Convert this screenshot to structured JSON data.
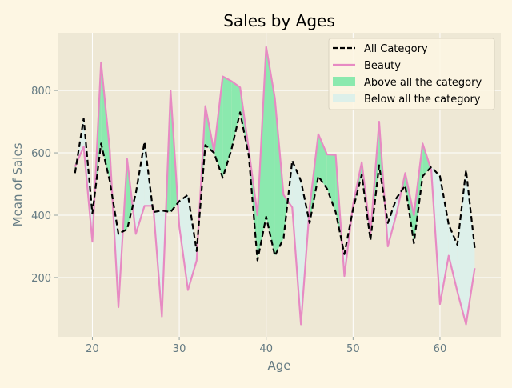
{
  "chart_data": {
    "type": "line",
    "title": "Sales by Ages",
    "xlabel": "Age",
    "ylabel": "Mean of Sales",
    "xlim": [
      16,
      67
    ],
    "ylim": [
      10,
      985
    ],
    "xticks": [
      20,
      30,
      40,
      50,
      60
    ],
    "yticks": [
      200,
      400,
      600,
      800
    ],
    "grid": true,
    "legend_position": "top-right",
    "x": [
      18,
      19,
      20,
      21,
      22,
      23,
      24,
      25,
      26,
      27,
      28,
      29,
      30,
      31,
      32,
      33,
      34,
      35,
      36,
      37,
      38,
      39,
      40,
      41,
      42,
      43,
      44,
      45,
      46,
      47,
      48,
      49,
      50,
      51,
      52,
      53,
      54,
      55,
      56,
      57,
      58,
      59,
      60,
      61,
      62,
      63,
      64
    ],
    "series": [
      {
        "name": "All Category",
        "color": "#000000",
        "style": "dashed",
        "values": [
          535,
          710,
          405,
          630,
          510,
          340,
          355,
          470,
          635,
          410,
          415,
          410,
          445,
          465,
          285,
          625,
          600,
          520,
          610,
          730,
          590,
          255,
          395,
          270,
          325,
          575,
          510,
          375,
          525,
          485,
          410,
          275,
          420,
          530,
          320,
          560,
          375,
          455,
          495,
          310,
          525,
          555,
          525,
          370,
          305,
          545,
          295
        ]
      },
      {
        "name": "Beauty",
        "color": "#e78ac3",
        "style": "solid",
        "values": [
          555,
          620,
          315,
          890,
          610,
          105,
          580,
          340,
          430,
          430,
          75,
          800,
          365,
          160,
          255,
          750,
          605,
          845,
          830,
          810,
          610,
          400,
          940,
          775,
          465,
          425,
          50,
          425,
          660,
          595,
          593,
          205,
          435,
          570,
          340,
          700,
          300,
          405,
          535,
          400,
          630,
          545,
          115,
          270,
          155,
          50,
          230
        ]
      }
    ],
    "fill_legend": [
      {
        "name": "Above all the category",
        "color": "#8be9ae"
      },
      {
        "name": "Below all the category",
        "color": "#ddf0ea"
      }
    ]
  }
}
